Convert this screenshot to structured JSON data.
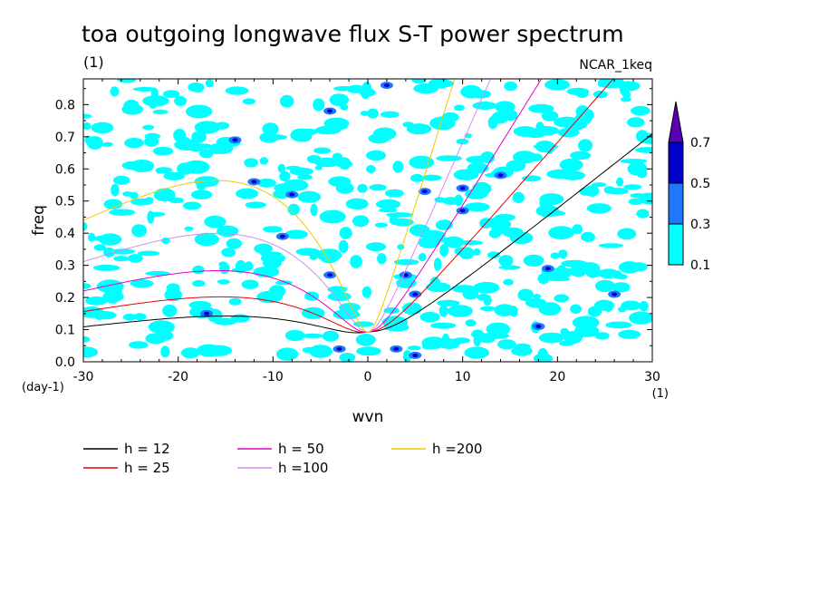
{
  "chart_data": {
    "type": "heatmap",
    "title": "toa outgoing longwave flux S-T power spectrum",
    "subtitle": "(1)",
    "model_label": "NCAR_1keq",
    "xlabel": "wvn",
    "ylabel": "freq",
    "x_unit": "(1)",
    "y_unit": "(day-1)",
    "xlim": [
      -30,
      30
    ],
    "ylim": [
      0,
      0.88
    ],
    "x_ticks": [
      -30,
      -20,
      -10,
      0,
      10,
      20,
      30
    ],
    "y_ticks": [
      0.0,
      0.1,
      0.2,
      0.3,
      0.4,
      0.5,
      0.6,
      0.7,
      0.8
    ],
    "x_tick_labels": [
      "-30",
      "-20",
      "-10",
      "0",
      "10",
      "20",
      "30"
    ],
    "y_tick_labels": [
      "0.0",
      "0.1",
      "0.2",
      "0.3",
      "0.4",
      "0.5",
      "0.6",
      "0.7",
      "0.8"
    ],
    "contour_levels": [
      0.1,
      0.3,
      0.5,
      0.7
    ],
    "colorbar_labels": [
      "0.1",
      "0.3",
      "0.5",
      "0.7"
    ],
    "colorbar_colors": [
      "#00ffff",
      "#1e78ff",
      "#0000c8",
      "#5a00b4"
    ],
    "series": [
      {
        "name": "h = 12",
        "color": "#000000",
        "h": 12
      },
      {
        "name": "h = 25",
        "color": "#e60000",
        "h": 25
      },
      {
        "name": "h = 50",
        "color": "#e600c8",
        "h": 50
      },
      {
        "name": "h =100",
        "color": "#d28cf0",
        "h": 100
      },
      {
        "name": "h =200",
        "color": "#f0c800",
        "h": 200
      }
    ],
    "legend_placement": "bottom",
    "grid": false
  }
}
